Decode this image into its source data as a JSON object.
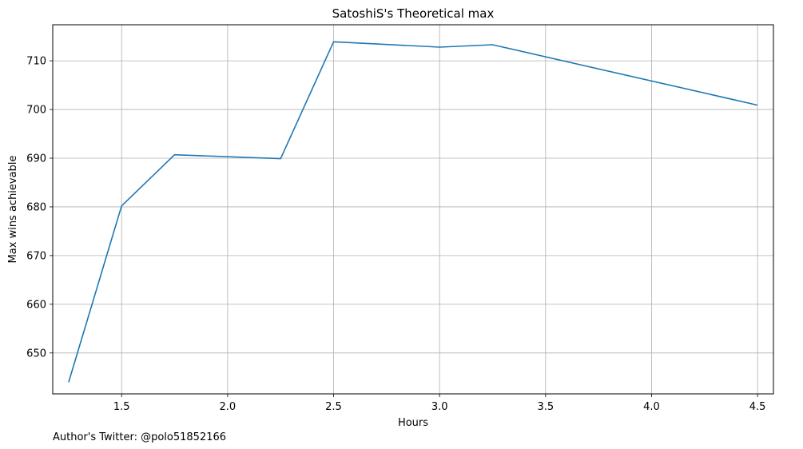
{
  "chart_data": {
    "type": "line",
    "title": "SatoshiS's Theoretical max",
    "xlabel": "Hours",
    "ylabel": "Max wins achievable",
    "xlim": [
      1.175,
      4.575
    ],
    "ylim": [
      641.6,
      717.4
    ],
    "x_ticks": [
      1.5,
      2.0,
      2.5,
      3.0,
      3.5,
      4.0,
      4.5
    ],
    "y_ticks": [
      650,
      660,
      670,
      680,
      690,
      700,
      710
    ],
    "grid": true,
    "series": [
      {
        "color": "#1f77b4",
        "x": [
          1.25,
          1.5,
          1.75,
          2.25,
          2.5,
          3.0,
          3.25,
          4.5
        ],
        "y": [
          644,
          680.2,
          690.7,
          689.9,
          713.9,
          712.8,
          713.3,
          700.9
        ]
      }
    ]
  },
  "footnote": "Author's Twitter: @polo51852166"
}
